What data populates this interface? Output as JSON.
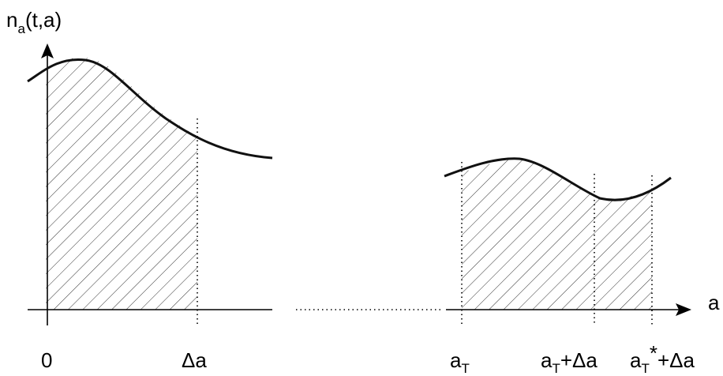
{
  "diagram": {
    "y_axis_label": {
      "main": "n",
      "subscript": "a",
      "rest": "(t,a)"
    },
    "x_axis_label": "a",
    "tick_labels": {
      "origin": "0",
      "delta_a": "Δa",
      "a_T": {
        "main": "a",
        "subscript": "T"
      },
      "a_T_plus_delta": {
        "main": "a",
        "subscript": "T",
        "rest": "+Δa"
      },
      "a_T_star_plus_delta": {
        "main": "a",
        "subscript": "T",
        "star": "*",
        "rest": "+Δa"
      }
    },
    "hatched_regions": [
      "0 to Δa",
      "a_T to a_T+Δa",
      "a_T+Δa to a_T*+Δa"
    ],
    "colors": {
      "line": "#111111",
      "hatch": "#333333",
      "background": "#ffffff"
    }
  }
}
